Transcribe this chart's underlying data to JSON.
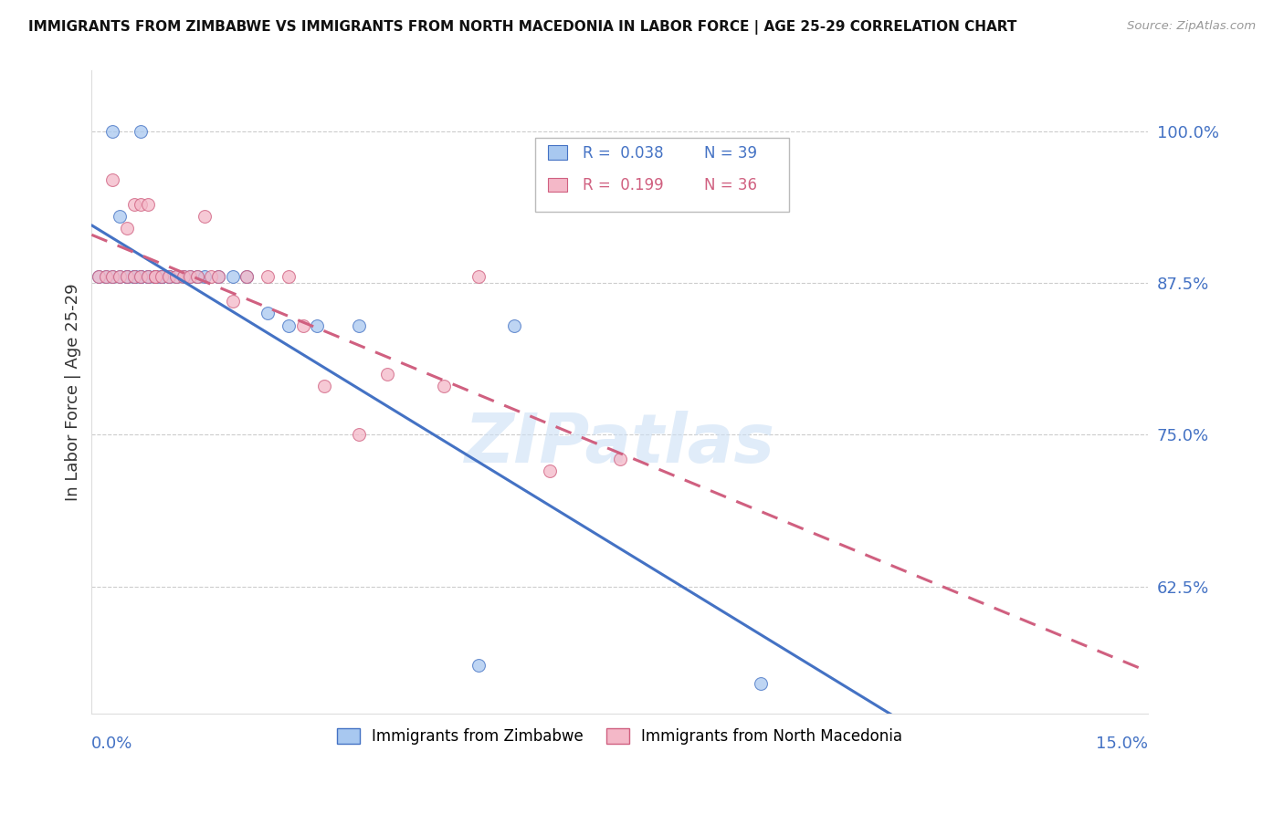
{
  "title": "IMMIGRANTS FROM ZIMBABWE VS IMMIGRANTS FROM NORTH MACEDONIA IN LABOR FORCE | AGE 25-29 CORRELATION CHART",
  "source": "Source: ZipAtlas.com",
  "ylabel": "In Labor Force | Age 25-29",
  "ytick_labels": [
    "100.0%",
    "87.5%",
    "75.0%",
    "62.5%"
  ],
  "ytick_values": [
    1.0,
    0.875,
    0.75,
    0.625
  ],
  "xlim": [
    0.0,
    0.15
  ],
  "ylim": [
    0.52,
    1.05
  ],
  "legend_r1": "R =  0.038",
  "legend_n1": "N = 39",
  "legend_r2": "R =  0.199",
  "legend_n2": "N = 36",
  "color_zimbabwe_fill": "#a8c8f0",
  "color_zimbabwe_edge": "#4472c4",
  "color_north_macedonia_fill": "#f4b8c8",
  "color_north_macedonia_edge": "#d06080",
  "color_line_zimbabwe": "#4472c4",
  "color_line_north_macedonia": "#d06080",
  "color_axis_right": "#4472c4",
  "scatter_alpha": 0.75,
  "marker_size": 100,
  "zimbabwe_x": [
    0.001,
    0.002,
    0.003,
    0.003,
    0.004,
    0.004,
    0.005,
    0.005,
    0.006,
    0.006,
    0.006,
    0.007,
    0.007,
    0.007,
    0.008,
    0.008,
    0.009,
    0.009,
    0.009,
    0.01,
    0.01,
    0.01,
    0.011,
    0.011,
    0.012,
    0.013,
    0.014,
    0.015,
    0.016,
    0.018,
    0.02,
    0.022,
    0.025,
    0.028,
    0.032,
    0.038,
    0.055,
    0.06,
    0.095
  ],
  "zimbabwe_y": [
    0.88,
    0.88,
    0.88,
    1.0,
    0.88,
    0.93,
    0.88,
    0.88,
    0.88,
    0.88,
    0.88,
    0.88,
    0.88,
    1.0,
    0.88,
    0.88,
    0.88,
    0.88,
    0.88,
    0.88,
    0.88,
    0.88,
    0.88,
    0.88,
    0.88,
    0.88,
    0.88,
    0.88,
    0.88,
    0.88,
    0.88,
    0.88,
    0.85,
    0.84,
    0.84,
    0.84,
    0.56,
    0.84,
    0.545
  ],
  "north_macedonia_x": [
    0.001,
    0.002,
    0.003,
    0.003,
    0.004,
    0.005,
    0.005,
    0.006,
    0.006,
    0.007,
    0.007,
    0.008,
    0.008,
    0.009,
    0.009,
    0.01,
    0.011,
    0.012,
    0.013,
    0.014,
    0.015,
    0.016,
    0.017,
    0.018,
    0.02,
    0.022,
    0.025,
    0.028,
    0.03,
    0.033,
    0.038,
    0.042,
    0.05,
    0.055,
    0.065,
    0.075
  ],
  "north_macedonia_y": [
    0.88,
    0.88,
    0.96,
    0.88,
    0.88,
    0.92,
    0.88,
    0.94,
    0.88,
    0.94,
    0.88,
    0.94,
    0.88,
    0.88,
    0.88,
    0.88,
    0.88,
    0.88,
    0.88,
    0.88,
    0.88,
    0.93,
    0.88,
    0.88,
    0.86,
    0.88,
    0.88,
    0.88,
    0.84,
    0.79,
    0.75,
    0.8,
    0.79,
    0.88,
    0.72,
    0.73
  ]
}
